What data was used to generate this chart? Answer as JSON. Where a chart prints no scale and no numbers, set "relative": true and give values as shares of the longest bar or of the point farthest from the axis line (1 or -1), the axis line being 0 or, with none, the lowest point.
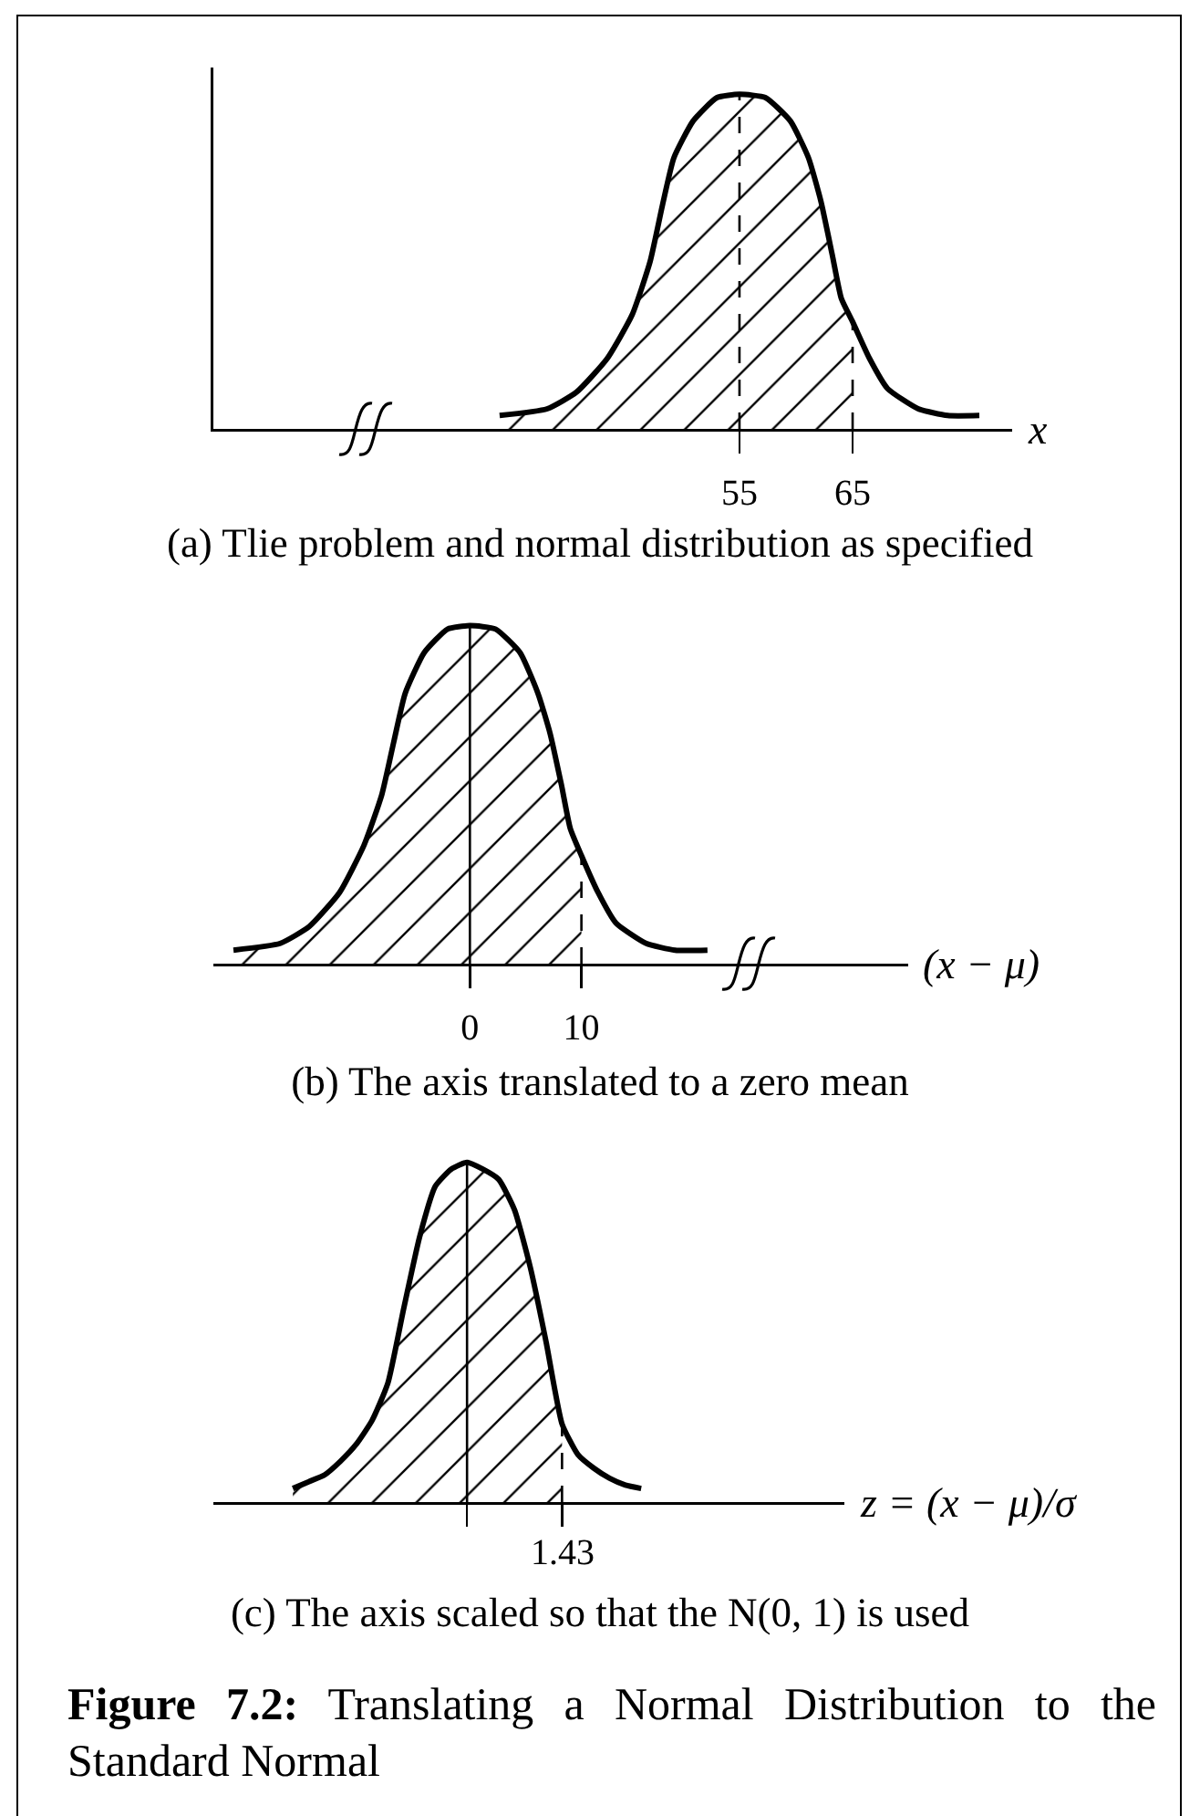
{
  "chart_data": [
    {
      "type": "line",
      "title": "(a) Tlie problem and normal distribution as specified",
      "xlabel": "x",
      "relative": true,
      "xlim": [
        8.5,
        79.1
      ],
      "xticks": [
        55,
        65
      ],
      "series": [
        {
          "type": "line",
          "color": "#000000",
          "x": [
            33.8,
            38.0,
            40.6,
            43.3,
            45.5,
            47.1,
            48.2,
            49.2,
            50.9,
            53.0,
            55,
            57.3,
            59.5,
            61.1,
            62.2,
            63.2,
            64.0,
            65.0,
            66.5,
            68.1,
            70.8,
            73.4,
            76.2
          ],
          "values": [
            0.04,
            0.06,
            0.11,
            0.21,
            0.34,
            0.5,
            0.67,
            0.81,
            0.92,
            0.99,
            1,
            0.99,
            0.92,
            0.81,
            0.68,
            0.52,
            0.39,
            0.32,
            0.21,
            0.12,
            0.06,
            0.04,
            0.04
          ]
        },
        {
          "type": "area",
          "color": "#000000",
          "x": [
            33.8,
            38.0,
            40.6,
            43.3,
            45.5,
            47.1,
            48.2,
            49.2,
            50.9,
            53.0,
            55,
            57.3,
            59.5,
            61.1,
            62.2,
            63.2,
            64.0,
            65.0
          ],
          "values": [
            0.04,
            0.06,
            0.11,
            0.21,
            0.34,
            0.5,
            0.67,
            0.81,
            0.92,
            0.99,
            1,
            0.99,
            0.92,
            0.81,
            0.68,
            0.52,
            0.39,
            0.32
          ]
        }
      ],
      "ref_lines": [
        {
          "axis": "x",
          "value": 55,
          "line_style": "dashed"
        },
        {
          "axis": "x",
          "value": 65,
          "line_style": "dashed"
        }
      ]
    },
    {
      "type": "line",
      "title": "(b) The axis translated to a zero mean",
      "xlabel": "(x − μ)",
      "relative": true,
      "xlim": [
        -23,
        39.3
      ],
      "xticks": [
        0,
        10
      ],
      "series": [
        {
          "type": "line",
          "color": "#000000",
          "x": [
            -21.2,
            -17,
            -14.4,
            -11.7,
            -9.5,
            -7.9,
            -6.8,
            -5.8,
            -4.1,
            -2,
            0,
            2.3,
            4.5,
            6.1,
            7.2,
            8.2,
            9,
            10,
            11.5,
            13.1,
            15.8,
            18.4,
            21.3
          ],
          "values": [
            0.04,
            0.06,
            0.11,
            0.21,
            0.35,
            0.5,
            0.66,
            0.8,
            0.92,
            0.99,
            1,
            0.99,
            0.92,
            0.8,
            0.68,
            0.53,
            0.4,
            0.32,
            0.21,
            0.12,
            0.06,
            0.04,
            0.04
          ]
        },
        {
          "type": "area",
          "color": "#000000",
          "x": [
            -21.2,
            -17,
            -14.4,
            -11.7,
            -9.5,
            -7.9,
            -6.8,
            -5.8,
            -4.1,
            -2,
            0,
            2.3,
            4.5,
            6.1,
            7.2,
            8.2,
            9,
            10
          ],
          "values": [
            0.04,
            0.06,
            0.11,
            0.21,
            0.35,
            0.5,
            0.66,
            0.8,
            0.92,
            0.99,
            1,
            0.99,
            0.92,
            0.8,
            0.68,
            0.53,
            0.4,
            0.32
          ]
        }
      ],
      "ref_lines": [
        {
          "axis": "x",
          "value": 0,
          "line_style": "solid"
        },
        {
          "axis": "x",
          "value": 10,
          "line_style": "dashed"
        }
      ]
    },
    {
      "type": "line",
      "title": "(c) The axis scaled so that the N(0, 1) is used",
      "xlabel": "z = (x − μ)/σ",
      "relative": true,
      "categories": [
        null,
        null,
        null,
        null,
        null,
        null,
        null,
        null,
        null,
        null,
        null,
        null,
        null,
        null,
        null,
        null,
        null,
        null,
        null,
        null,
        null,
        null,
        null
      ],
      "series": [
        {
          "type": "line",
          "color": "#000000",
          "values": [
            0.04,
            0.06,
            0.08,
            0.12,
            0.17,
            0.24,
            0.35,
            0.57,
            0.78,
            0.93,
            0.98,
            1,
            0.98,
            0.95,
            0.86,
            0.69,
            0.47,
            0.23,
            0.14,
            0.1,
            0.07,
            0.05,
            0.04
          ]
        },
        {
          "type": "area",
          "color": "#000000",
          "values": [
            0.04,
            0.06,
            0.08,
            0.12,
            0.17,
            0.24,
            0.35,
            0.57,
            0.78,
            0.93,
            0.98,
            1,
            0.98,
            0.95,
            0.86,
            0.69,
            0.47,
            0.23,
            null,
            null,
            null,
            null,
            null
          ]
        }
      ],
      "annotations": [
        {
          "text": "1.43",
          "y": 0
        },
        "Figure 7.2: Translating a Normal Distribution to the Standard Normal"
      ]
    }
  ]
}
